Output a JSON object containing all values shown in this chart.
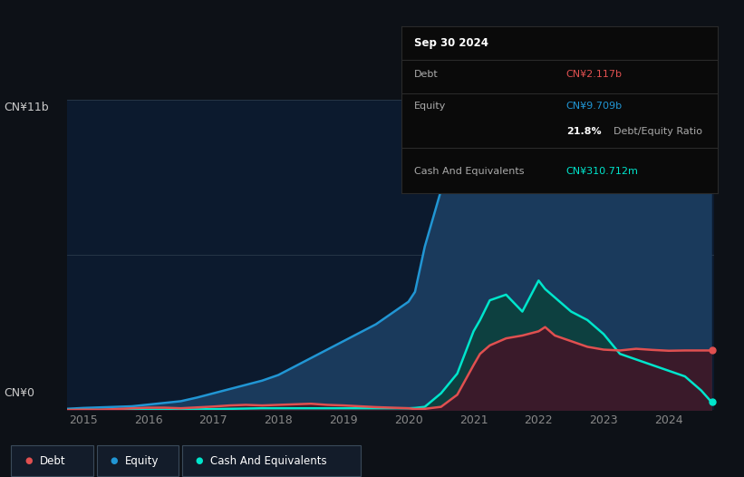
{
  "background_color": "#0d1117",
  "plot_bg_color": "#0c1a2e",
  "title_y_label": "CN¥11b",
  "y_label_bottom": "CN¥0",
  "x_ticks": [
    2015,
    2016,
    2017,
    2018,
    2019,
    2020,
    2021,
    2022,
    2023,
    2024
  ],
  "ylim": [
    0,
    11
  ],
  "tooltip": {
    "date": "Sep 30 2024",
    "debt_label": "Debt",
    "debt_value": "CN¥2.117b",
    "equity_label": "Equity",
    "equity_value": "CN¥9.709b",
    "ratio_value": "21.8%",
    "ratio_label": "Debt/Equity Ratio",
    "cash_label": "Cash And Equivalents",
    "cash_value": "CN¥310.712m"
  },
  "debt_color": "#e05050",
  "equity_color": "#2196d4",
  "cash_color": "#00e5cc",
  "equity_fill": "#1a3a5c",
  "cash_fill": "#0d4040",
  "debt_fill": "#3a1a2a",
  "legend_items": [
    "Debt",
    "Equity",
    "Cash And Equivalents"
  ],
  "years": [
    2014.75,
    2015.0,
    2015.25,
    2015.5,
    2015.75,
    2016.0,
    2016.25,
    2016.5,
    2016.75,
    2017.0,
    2017.25,
    2017.5,
    2017.75,
    2018.0,
    2018.25,
    2018.5,
    2018.75,
    2019.0,
    2019.25,
    2019.5,
    2019.75,
    2020.0,
    2020.1,
    2020.25,
    2020.5,
    2020.75,
    2021.0,
    2021.1,
    2021.25,
    2021.5,
    2021.75,
    2022.0,
    2022.1,
    2022.25,
    2022.5,
    2022.75,
    2023.0,
    2023.25,
    2023.5,
    2023.75,
    2024.0,
    2024.25,
    2024.5,
    2024.65
  ],
  "equity": [
    0.05,
    0.08,
    0.1,
    0.12,
    0.14,
    0.2,
    0.26,
    0.32,
    0.45,
    0.6,
    0.75,
    0.9,
    1.05,
    1.25,
    1.55,
    1.85,
    2.15,
    2.45,
    2.75,
    3.05,
    3.45,
    3.85,
    4.2,
    5.8,
    7.8,
    8.6,
    9.1,
    9.25,
    9.4,
    9.6,
    9.85,
    10.5,
    10.8,
    10.55,
    10.35,
    10.1,
    9.85,
    9.75,
    9.95,
    10.05,
    9.95,
    9.88,
    9.82,
    9.71
  ],
  "debt": [
    0.01,
    0.02,
    0.02,
    0.04,
    0.07,
    0.09,
    0.09,
    0.07,
    0.1,
    0.13,
    0.17,
    0.19,
    0.17,
    0.19,
    0.21,
    0.23,
    0.19,
    0.17,
    0.14,
    0.11,
    0.09,
    0.07,
    0.04,
    0.05,
    0.12,
    0.55,
    1.6,
    2.0,
    2.3,
    2.55,
    2.65,
    2.8,
    2.95,
    2.65,
    2.45,
    2.25,
    2.15,
    2.12,
    2.18,
    2.14,
    2.11,
    2.12,
    2.12,
    2.12
  ],
  "cash": [
    0.01,
    0.01,
    0.01,
    0.01,
    0.02,
    0.02,
    0.02,
    0.02,
    0.03,
    0.04,
    0.05,
    0.06,
    0.07,
    0.07,
    0.07,
    0.07,
    0.07,
    0.07,
    0.07,
    0.07,
    0.07,
    0.07,
    0.08,
    0.12,
    0.6,
    1.3,
    2.8,
    3.2,
    3.9,
    4.1,
    3.5,
    4.6,
    4.3,
    4.0,
    3.5,
    3.2,
    2.7,
    2.0,
    1.8,
    1.6,
    1.4,
    1.2,
    0.7,
    0.31
  ]
}
